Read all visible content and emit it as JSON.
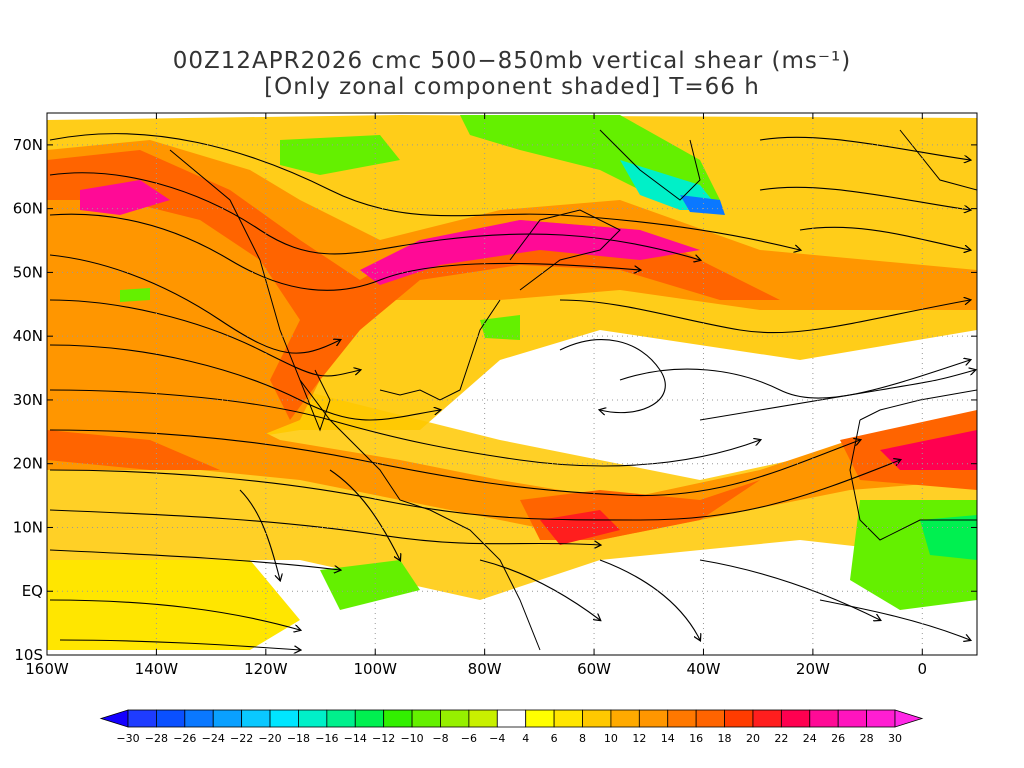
{
  "title": {
    "line1": "00Z12APR2026 cmc 500−850mb vertical shear (ms⁻¹)",
    "line2": "[Only zonal component shaded] T=66 h"
  },
  "axes": {
    "lon_labels": [
      "160W",
      "140W",
      "120W",
      "100W",
      "80W",
      "60W",
      "40W",
      "20W",
      "0"
    ],
    "lon_values": [
      -160,
      -140,
      -120,
      -100,
      -80,
      -60,
      -40,
      -20,
      0
    ],
    "lat_labels": [
      "70N",
      "60N",
      "50N",
      "40N",
      "30N",
      "20N",
      "10N",
      "EQ",
      "10S"
    ],
    "lat_values": [
      70,
      60,
      50,
      40,
      30,
      20,
      10,
      0,
      -10
    ],
    "lon_range": [
      -160,
      10
    ],
    "lat_range": [
      -10,
      75
    ]
  },
  "colorbar": {
    "labels": [
      "-30",
      "-28",
      "-26",
      "-24",
      "-22",
      "-20",
      "-18",
      "-16",
      "-14",
      "-12",
      "-10",
      "-8",
      "-6",
      "-4",
      "4",
      "6",
      "8",
      "10",
      "12",
      "14",
      "16",
      "18",
      "20",
      "22",
      "24",
      "26",
      "28",
      "30"
    ],
    "colors": [
      "#1e3cff",
      "#0a50ff",
      "#0a78ff",
      "#0aa0ff",
      "#0ac8ff",
      "#00e6ff",
      "#00f0c8",
      "#00f08c",
      "#00f050",
      "#32f000",
      "#64f000",
      "#96f000",
      "#c8f000",
      "#ffffff",
      "#ffff00",
      "#ffe600",
      "#ffc800",
      "#ffaa00",
      "#ff9600",
      "#ff7800",
      "#ff6400",
      "#ff3c00",
      "#ff1e1e",
      "#ff0050",
      "#ff0a96",
      "#ff14be",
      "#ff1ed2"
    ],
    "low_color": "#1400ff",
    "high_color": "#ff28e6"
  }
}
